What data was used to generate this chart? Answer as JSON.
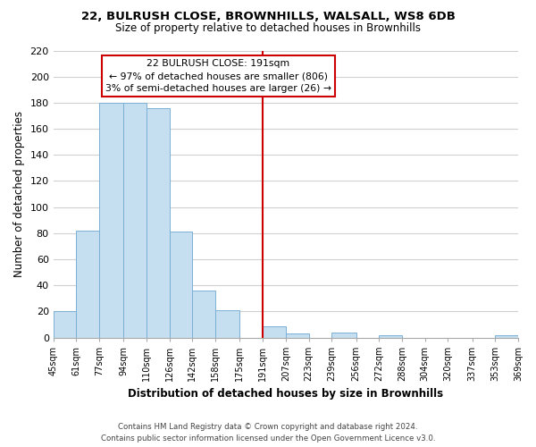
{
  "title_line1": "22, BULRUSH CLOSE, BROWNHILLS, WALSALL, WS8 6DB",
  "title_line2": "Size of property relative to detached houses in Brownhills",
  "xlabel": "Distribution of detached houses by size in Brownhills",
  "ylabel": "Number of detached properties",
  "bin_edges": [
    45,
    61,
    77,
    94,
    110,
    126,
    142,
    158,
    175,
    191,
    207,
    223,
    239,
    256,
    272,
    288,
    304,
    320,
    337,
    353,
    369
  ],
  "bin_heights": [
    20,
    82,
    180,
    180,
    176,
    81,
    36,
    21,
    0,
    9,
    3,
    0,
    4,
    0,
    2,
    0,
    0,
    0,
    0,
    2
  ],
  "tick_labels": [
    "45sqm",
    "61sqm",
    "77sqm",
    "94sqm",
    "110sqm",
    "126sqm",
    "142sqm",
    "158sqm",
    "175sqm",
    "191sqm",
    "207sqm",
    "223sqm",
    "239sqm",
    "256sqm",
    "272sqm",
    "288sqm",
    "304sqm",
    "320sqm",
    "337sqm",
    "353sqm",
    "369sqm"
  ],
  "bar_color": "#c5dff0",
  "bar_edge_color": "#7ab0d4",
  "reference_line_x": 191,
  "reference_line_color": "#cc0000",
  "annotation_title": "22 BULRUSH CLOSE: 191sqm",
  "annotation_line1": "← 97% of detached houses are smaller (806)",
  "annotation_line2": "3% of semi-detached houses are larger (26) →",
  "annotation_box_color": "#ffffff",
  "annotation_box_edge": "#cc0000",
  "ylim": [
    0,
    220
  ],
  "yticks": [
    0,
    20,
    40,
    60,
    80,
    100,
    120,
    140,
    160,
    180,
    200,
    220
  ],
  "footer_line1": "Contains HM Land Registry data © Crown copyright and database right 2024.",
  "footer_line2": "Contains public sector information licensed under the Open Government Licence v3.0.",
  "background_color": "#ffffff",
  "grid_color": "#d0d0d0"
}
